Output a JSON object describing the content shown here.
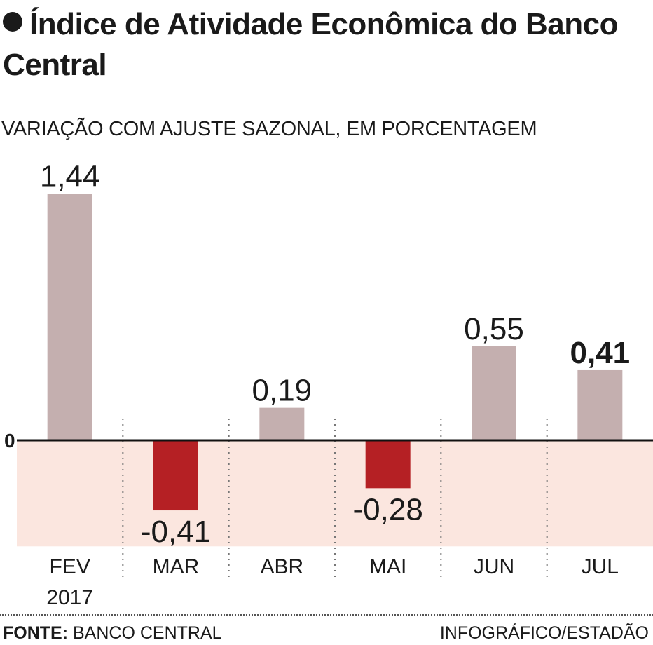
{
  "header": {
    "title": "Índice de Atividade Econômica do Banco Central",
    "subtitle": "VARIAÇÃO COM AJUSTE SAZONAL, EM PORCENTAGEM"
  },
  "chart_data": {
    "type": "bar",
    "title": "Índice de Atividade Econômica do Banco Central",
    "subtitle": "VARIAÇÃO COM AJUSTE SAZONAL, EM PORCENTAGEM",
    "categories": [
      "FEV",
      "MAR",
      "ABR",
      "MAI",
      "JUN",
      "JUL"
    ],
    "category_sublabels": [
      "2017",
      "",
      "",
      "",
      "",
      ""
    ],
    "values": [
      1.44,
      -0.41,
      0.19,
      -0.28,
      0.55,
      0.41
    ],
    "value_labels": [
      "1,44",
      "-0,41",
      "0,19",
      "-0,28",
      "0,55",
      "0,41"
    ],
    "highlight_index": 5,
    "zero_label": "0",
    "ylim": [
      -0.62,
      1.44
    ],
    "colors": {
      "positive": "#c4afaf",
      "negative": "#b52024",
      "negative_band": "#fbe6df",
      "axis": "#111111"
    }
  },
  "footer": {
    "source_label": "FONTE:",
    "source": "BANCO CENTRAL",
    "credit": "INFOGRÁFICO/ESTADÃO"
  }
}
